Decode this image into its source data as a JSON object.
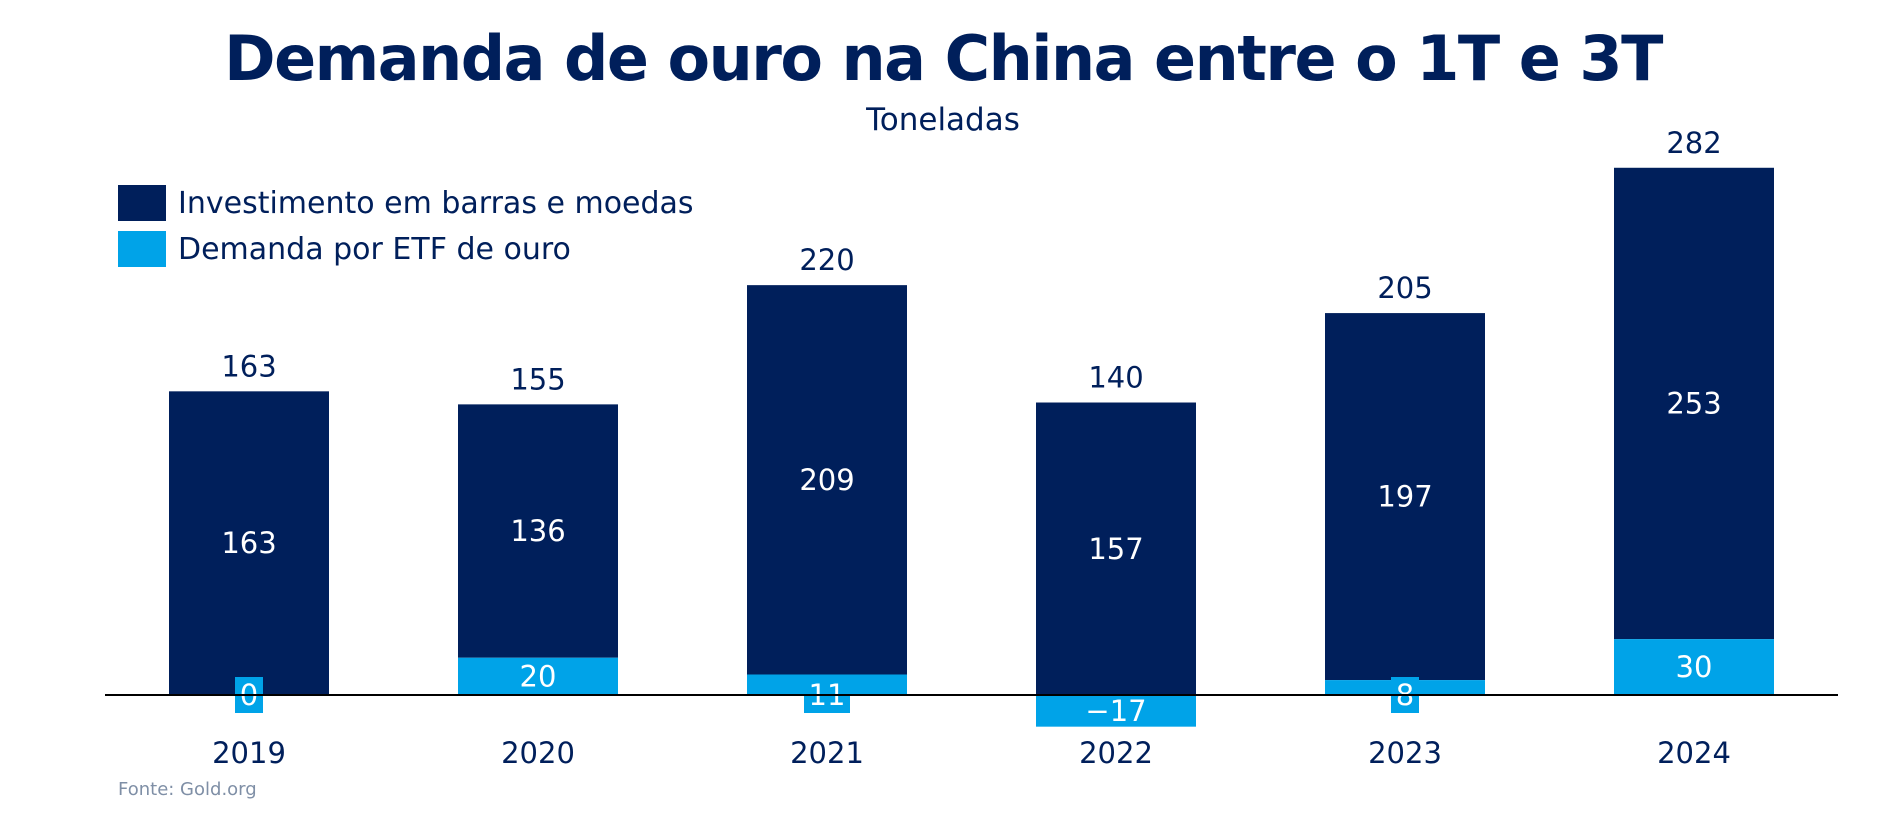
{
  "colors": {
    "primary": "#001f5b",
    "secondary": "#00a3e8",
    "axis": "#000000"
  },
  "chart_data": {
    "type": "bar",
    "stacked": true,
    "title": "Demanda de ouro na China entre o 1T e 3T",
    "subtitle": "Toneladas",
    "categories": [
      "2019",
      "2020",
      "2021",
      "2022",
      "2023",
      "2024"
    ],
    "series": [
      {
        "name": "Investimento em barras e moedas",
        "color": "#001f5b",
        "values": [
          163,
          136,
          209,
          157,
          197,
          253
        ]
      },
      {
        "name": "Demanda por ETF de ouro",
        "color": "#00a3e8",
        "values": [
          0,
          20,
          11,
          -17,
          8,
          30
        ]
      }
    ],
    "totals": [
      163,
      155,
      220,
      140,
      205,
      282
    ],
    "ylim": [
      -17,
      282
    ],
    "grid": false,
    "legend": "top-left",
    "source": "Fonte: Gold.org"
  }
}
